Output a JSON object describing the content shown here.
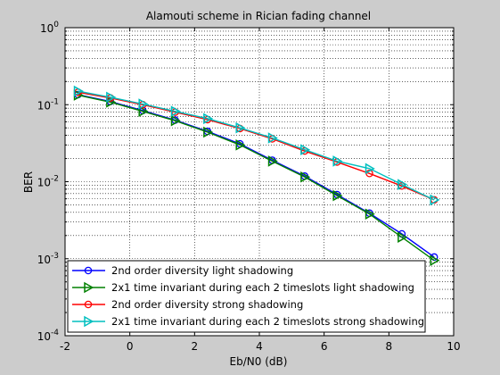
{
  "chart_data": {
    "type": "line",
    "title": "Alamouti scheme in Rician fading channel",
    "xlabel": "Eb/N0 (dB)",
    "ylabel": "BER",
    "xlim": [
      -2,
      10
    ],
    "ylim": [
      0.0001,
      1
    ],
    "yscale": "log",
    "grid": true,
    "legend_position": "bottom-left",
    "x_ticks": [
      "-2",
      "0",
      "2",
      "4",
      "6",
      "8",
      "10"
    ],
    "y_ticks": [
      {
        "base": "10",
        "exp": "-4",
        "value": 0.0001
      },
      {
        "base": "10",
        "exp": "-3",
        "value": 0.001
      },
      {
        "base": "10",
        "exp": "-2",
        "value": 0.01
      },
      {
        "base": "10",
        "exp": "-1",
        "value": 0.1
      },
      {
        "base": "10",
        "exp": "0",
        "value": 1
      }
    ],
    "x": [
      -1.6,
      -0.6,
      0.4,
      1.4,
      2.4,
      3.4,
      4.4,
      5.4,
      6.4,
      7.4,
      8.4,
      9.4
    ],
    "series": [
      {
        "name": "2nd order diversity light shadowing",
        "color": "#0000ff",
        "marker": "circle",
        "values": [
          0.135,
          0.11,
          0.084,
          0.063,
          0.045,
          0.031,
          0.019,
          0.0118,
          0.0068,
          0.0039,
          0.0021,
          0.00105
        ]
      },
      {
        "name": "2x1 time invariant during each 2 timeslots light shadowing",
        "color": "#008000",
        "marker": "triangle-right",
        "values": [
          0.133,
          0.108,
          0.082,
          0.062,
          0.044,
          0.03,
          0.0185,
          0.0115,
          0.0066,
          0.0038,
          0.0019,
          0.00095
        ]
      },
      {
        "name": "2nd order diversity strong shadowing",
        "color": "#ff0000",
        "marker": "circle",
        "values": [
          0.145,
          0.122,
          0.1,
          0.08,
          0.064,
          0.049,
          0.036,
          0.025,
          0.018,
          0.0128,
          0.0088,
          0.0058
        ]
      },
      {
        "name": "2x1 time invariant during each 2 timeslots strong shadowing",
        "color": "#00bfbf",
        "marker": "triangle-right",
        "values": [
          0.15,
          0.125,
          0.102,
          0.082,
          0.066,
          0.05,
          0.037,
          0.026,
          0.0185,
          0.0148,
          0.0092,
          0.0058
        ]
      }
    ]
  }
}
